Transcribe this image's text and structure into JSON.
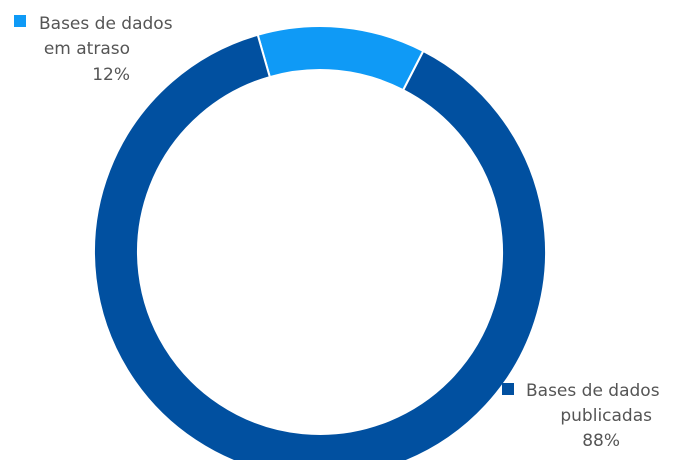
{
  "chart_data": {
    "type": "pie",
    "title": "",
    "series": [
      {
        "name": "Bases de dados em atraso",
        "label_lines": [
          "Bases de dados",
          "em atraso"
        ],
        "value": 12,
        "value_label": "12%",
        "color": "#0f9af6"
      },
      {
        "name": "Bases de dados publicadas",
        "label_lines": [
          "Bases de dados",
          "publicadas"
        ],
        "value": 88,
        "value_label": "88%",
        "color": "#0150a0"
      }
    ],
    "legend": "labels beside slices",
    "style": "donut",
    "start_angle_deg": -16
  }
}
